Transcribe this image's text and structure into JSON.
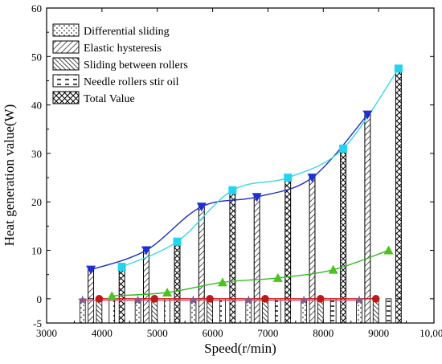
{
  "chart_data": {
    "type": "bar",
    "xlabel": "Speed(r/min)",
    "ylabel": "Heat generation value(W)",
    "xlim": [
      3000,
      10000
    ],
    "ylim": [
      -5,
      60
    ],
    "x_ticks": [
      3000,
      4000,
      5000,
      6000,
      7000,
      8000,
      9000,
      10000
    ],
    "x_tick_labels": [
      "3000",
      "4000",
      "5000",
      "6000",
      "7000",
      "8000",
      "9000",
      "10,000"
    ],
    "y_ticks": [
      -5,
      0,
      10,
      20,
      30,
      40,
      50,
      60
    ],
    "y_tick_labels": [
      "-5",
      "0",
      "10",
      "20",
      "30",
      "40",
      "50",
      "60"
    ],
    "x": [
      4000,
      5000,
      6000,
      7000,
      8000,
      9000
    ],
    "series": [
      {
        "name": "Differential sliding",
        "values": [
          -0.3,
          -0.3,
          -0.3,
          -0.3,
          -0.3,
          -0.3
        ],
        "hatch": "dots",
        "line_color": "#d05a7a",
        "marker": "star",
        "marker_color": "#8a5a8a",
        "offset": -350
      },
      {
        "name": "Elastic hysteresis",
        "values": [
          6.0,
          10.0,
          19.0,
          21.0,
          25.0,
          38.0
        ],
        "hatch": "forward",
        "line_color": "#1e2fbf",
        "marker": "triangle-down",
        "marker_color": "#1f2fd6",
        "offset": -200
      },
      {
        "name": "Sliding between rollers",
        "values": [
          0.0,
          0.0,
          0.0,
          0.0,
          0.0,
          0.0
        ],
        "hatch": "backward",
        "line_color": "#cc1a1a",
        "marker": "circle",
        "marker_color": "#c01818",
        "offset": -50
      },
      {
        "name": "Needle rollers stir oil",
        "values": [
          0.6,
          1.3,
          3.4,
          4.3,
          6.0,
          10.0
        ],
        "hatch": "dash",
        "line_color": "#33bb22",
        "marker": "triangle-up",
        "marker_color": "#4cc21e",
        "offset": 180
      },
      {
        "name": "Total Value",
        "values": [
          6.6,
          11.8,
          22.4,
          25.0,
          31.0,
          47.5
        ],
        "hatch": "cross",
        "line_color": "#39d8e8",
        "marker": "square",
        "marker_color": "#22d4ee",
        "offset": 360
      }
    ],
    "bar_heights": [
      [
        0,
        0,
        0,
        0,
        0,
        0
      ],
      [
        6.0,
        10.0,
        19.0,
        21.0,
        25.0,
        38.0
      ],
      [
        0,
        0,
        0,
        0,
        0,
        0
      ],
      [
        0,
        0,
        0,
        0,
        0,
        0
      ],
      [
        6.6,
        11.8,
        22.4,
        25.0,
        31.0,
        47.5
      ]
    ],
    "legend": {
      "placement": "top-left",
      "entries": [
        "Differential sliding",
        "Elastic hysteresis",
        "Sliding between rollers",
        "Needle rollers stir oil",
        "Total Value"
      ]
    },
    "grid": false
  }
}
